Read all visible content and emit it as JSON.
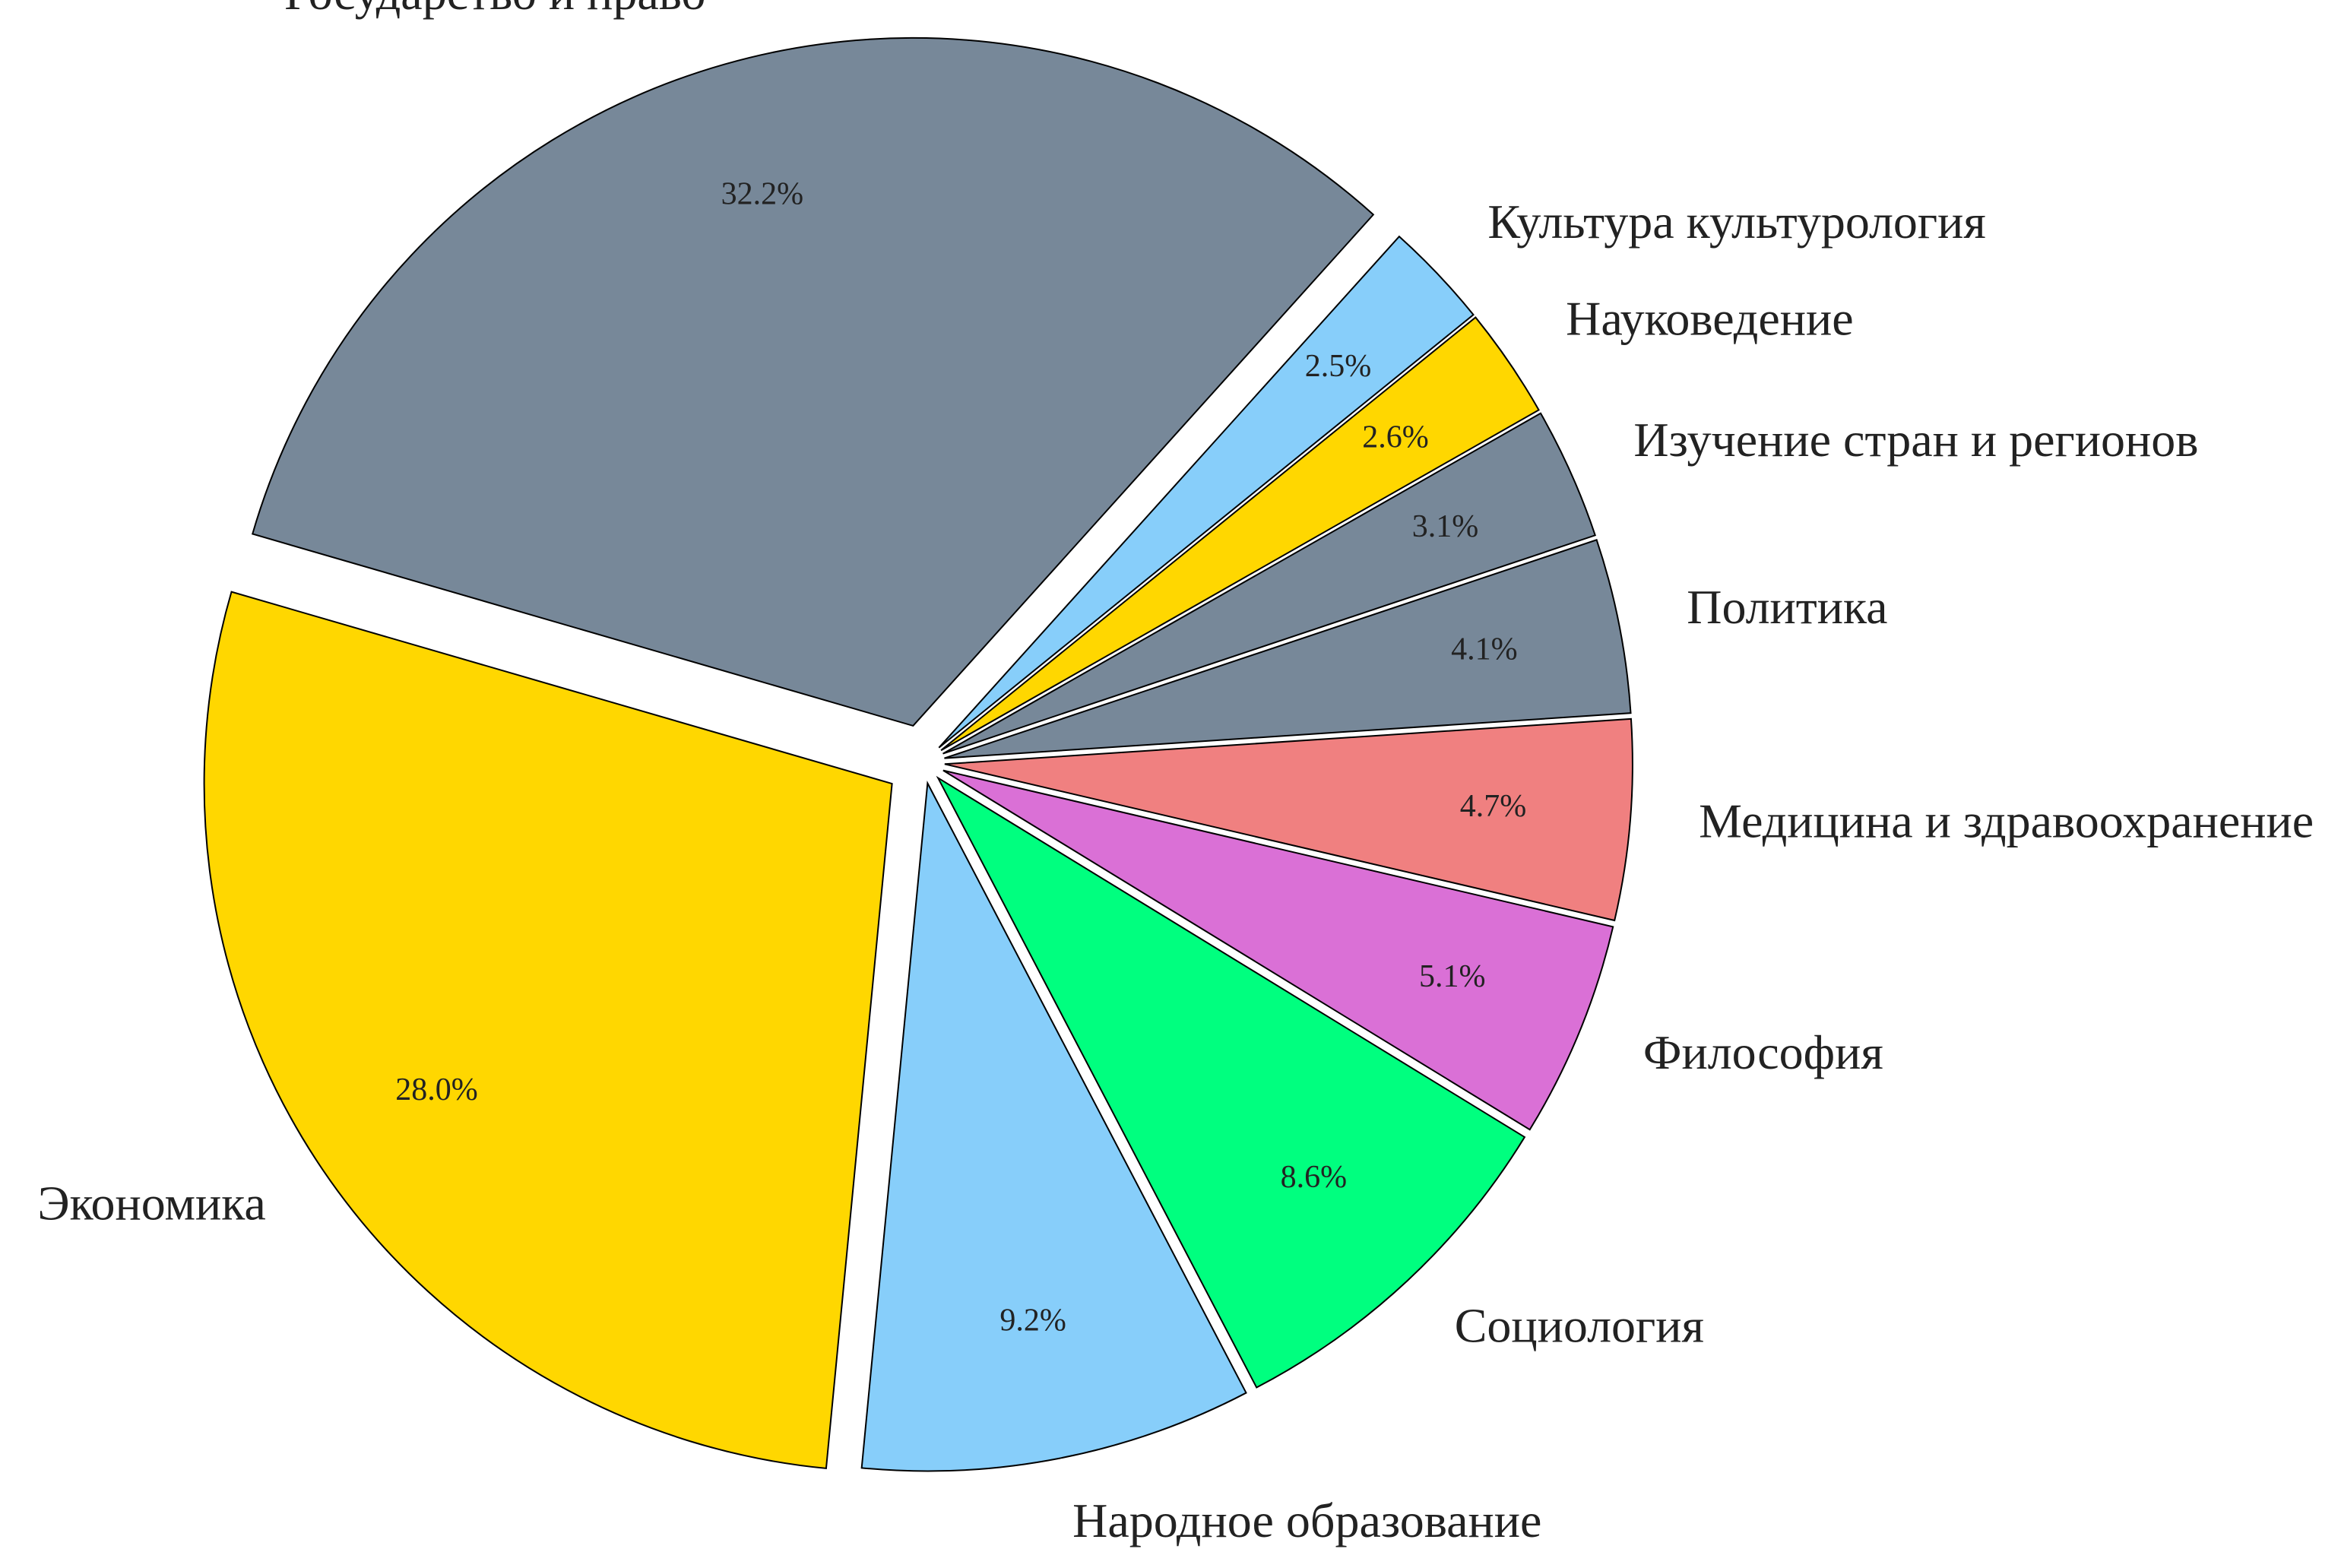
{
  "chart_data": {
    "type": "pie",
    "categories": [
      "Государство и право",
      "Экономика",
      "Народное образование",
      "Социология",
      "Философия",
      "Медицина и здравоохранение",
      "Политика",
      "Изучение стран и регионов",
      "Науковедение",
      "Культура культурология"
    ],
    "values": [
      32.2,
      28.0,
      9.2,
      8.6,
      5.1,
      4.7,
      4.1,
      3.1,
      2.6,
      2.5
    ],
    "value_labels": [
      "32.2%",
      "28.0%",
      "9.2%",
      "8.6%",
      "5.1%",
      "4.7%",
      "4.1%",
      "3.1%",
      "2.6%",
      "2.5%"
    ],
    "colors": [
      "#778899",
      "#FFD700",
      "#87CEFA",
      "#00FF7F",
      "#DA70D6",
      "#F08080",
      "#778899",
      "#778899",
      "#FFD700",
      "#87CEFA"
    ]
  }
}
